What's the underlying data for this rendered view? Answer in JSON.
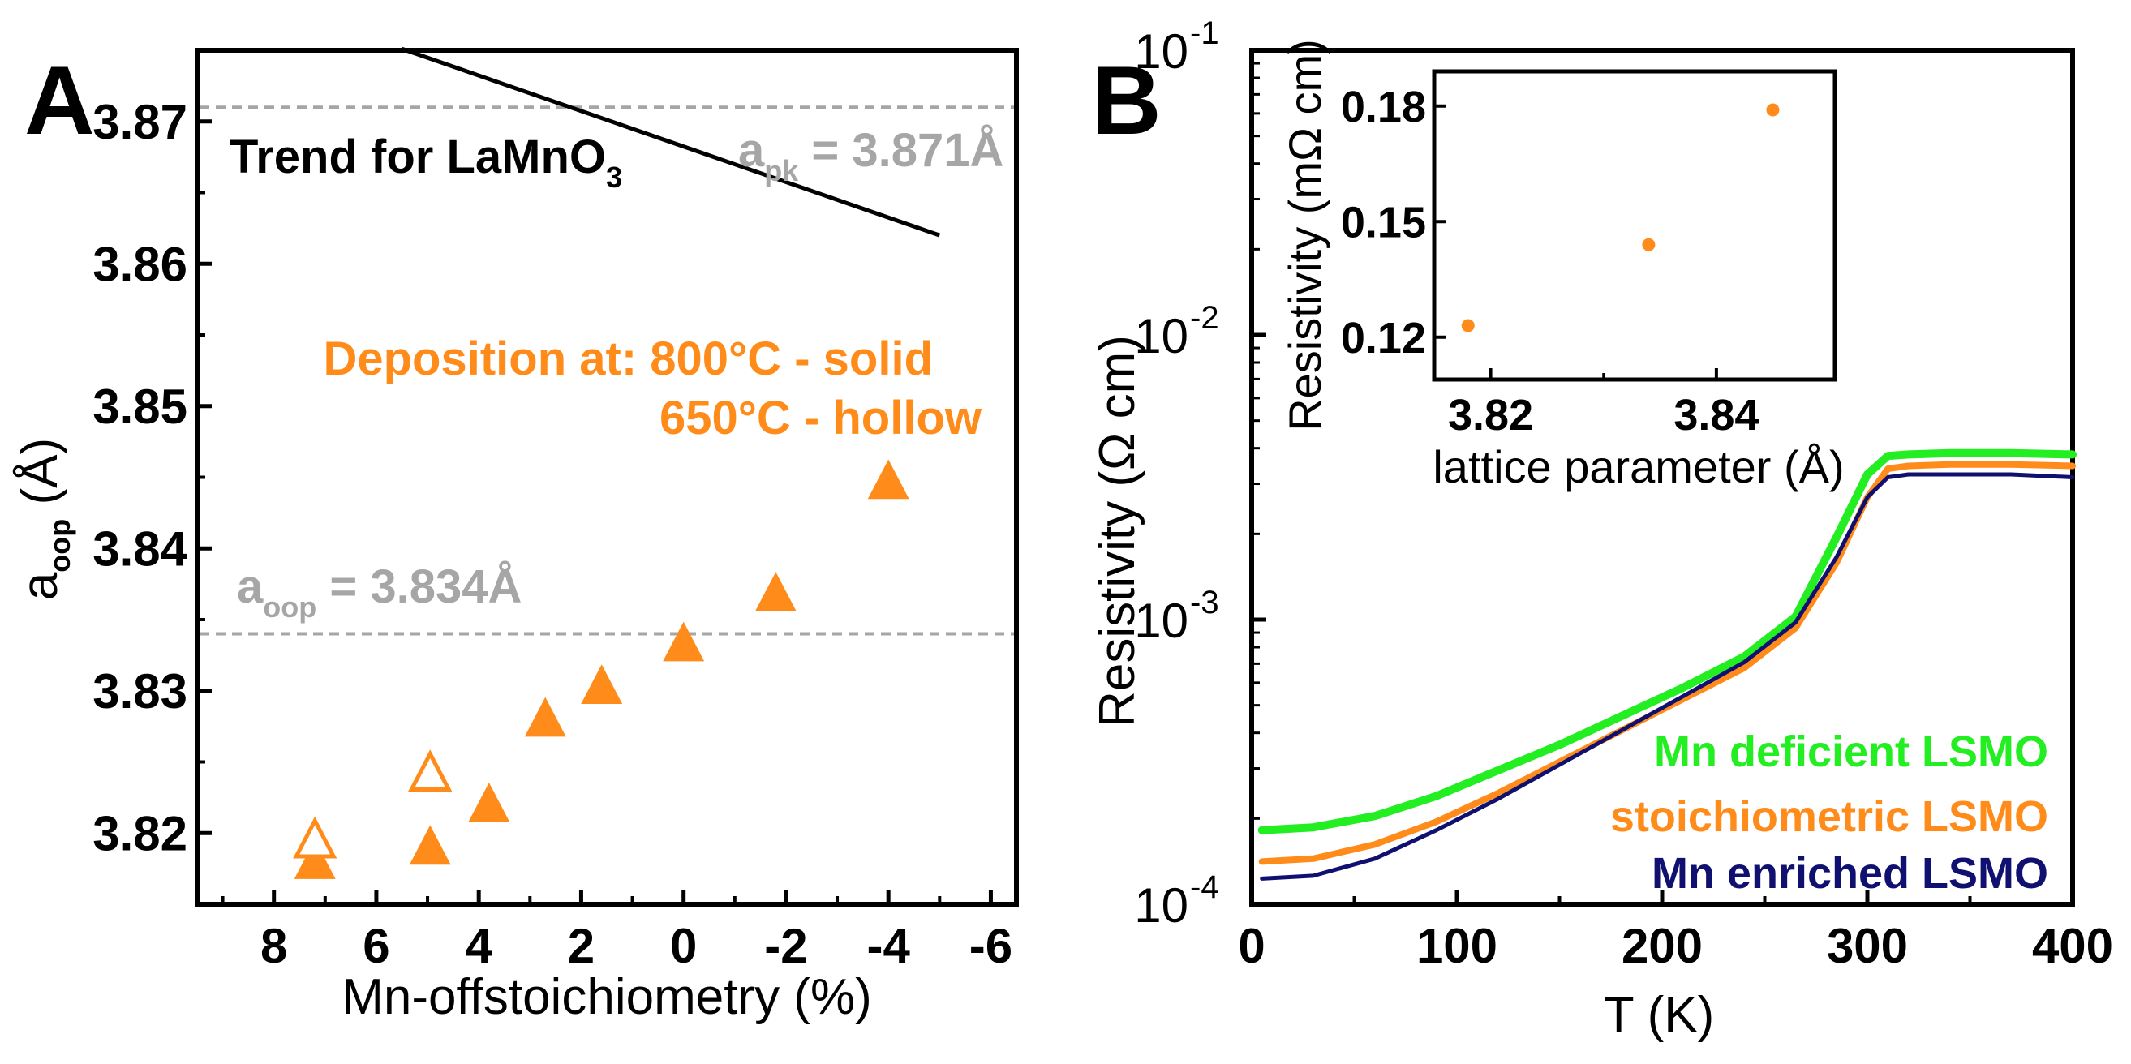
{
  "colors": {
    "orange": "#ff8c1a",
    "gray": "#a6a6a6",
    "green": "#22ee22",
    "navy": "#101070",
    "black": "#000000"
  },
  "chart_data": [
    {
      "panel": "A",
      "type": "scatter",
      "xlabel": "Mn-offstoichiometry (%)",
      "ylabel": "a",
      "ylabel_sub": "oop",
      "ylabel_unit": " (Å)",
      "xlim": [
        9.5,
        -6.5
      ],
      "ylim": [
        3.815,
        3.875
      ],
      "x_ticks": [
        8,
        6,
        4,
        2,
        0,
        -2,
        -4,
        -6
      ],
      "x_tick_labels": [
        "8",
        "6",
        "4",
        "2",
        "0",
        "-2",
        "-4",
        "-6"
      ],
      "y_ticks": [
        3.82,
        3.83,
        3.84,
        3.85,
        3.86,
        3.87
      ],
      "y_tick_labels": [
        "3.82",
        "3.83",
        "3.84",
        "3.85",
        "3.86",
        "3.87"
      ],
      "series": [
        {
          "name": "800°C - solid",
          "marker": "filled-triangle",
          "color": "#ff8c1a",
          "points": [
            [
              7.2,
              3.818
            ],
            [
              4.95,
              3.819
            ],
            [
              3.8,
              3.822
            ],
            [
              2.7,
              3.828
            ],
            [
              1.6,
              3.8303
            ],
            [
              0.0,
              3.8333
            ],
            [
              -1.8,
              3.8368
            ],
            [
              -4.0,
              3.8447
            ]
          ]
        },
        {
          "name": "650°C - hollow",
          "marker": "hollow-triangle",
          "color": "#ff8c1a",
          "points": [
            [
              7.2,
              3.8195
            ],
            [
              4.95,
              3.8242
            ]
          ]
        }
      ],
      "reference_lines": [
        {
          "name": "apk",
          "value": 3.871,
          "label_main": "a",
          "label_sub": "pk",
          "label_rest": " = 3.871Å"
        },
        {
          "name": "aoop",
          "value": 3.834,
          "label_main": "a",
          "label_sub": "oop",
          "label_rest": " = 3.834Å"
        }
      ],
      "trend_line": {
        "name": "Trend for LaMnO3",
        "points": [
          [
            5.5,
            3.8751
          ],
          [
            -5.0,
            3.862
          ]
        ]
      },
      "annotations": {
        "panel_letter": "A",
        "trend_text": "Trend for LaMnO",
        "trend_sub": "3",
        "deposition_line1": "Deposition at: 800°C - solid",
        "deposition_line2": "650°C - hollow"
      }
    },
    {
      "panel": "B",
      "type": "line",
      "xlabel": "T (K)",
      "ylabel": "Resistivity (Ω cm)",
      "xlim": [
        0,
        400
      ],
      "ylim_log10": [
        -4,
        -1
      ],
      "x_ticks": [
        0,
        100,
        200,
        300,
        400
      ],
      "x_tick_labels": [
        "0",
        "100",
        "200",
        "300",
        "400"
      ],
      "y_ticks_log10": [
        -4,
        -3,
        -2,
        -1
      ],
      "y_tick_base": "10",
      "y_tick_exponents": [
        "-4",
        "-3",
        "-2",
        "-1"
      ],
      "series": [
        {
          "name": "Mn deficient LSMO",
          "color": "#22ee22",
          "x": [
            5,
            30,
            60,
            90,
            120,
            150,
            180,
            210,
            240,
            265,
            285,
            300,
            310,
            320,
            340,
            370,
            400
          ],
          "log10_y": [
            -3.74,
            -3.73,
            -3.69,
            -3.62,
            -3.53,
            -3.44,
            -3.34,
            -3.24,
            -3.13,
            -2.99,
            -2.71,
            -2.49,
            -2.425,
            -2.42,
            -2.415,
            -2.415,
            -2.42
          ]
        },
        {
          "name": "stoichiometric LSMO",
          "color": "#ff8c1a",
          "x": [
            5,
            30,
            60,
            90,
            120,
            150,
            180,
            210,
            240,
            265,
            285,
            300,
            310,
            320,
            340,
            370,
            400
          ],
          "log10_y": [
            -3.85,
            -3.84,
            -3.79,
            -3.71,
            -3.61,
            -3.5,
            -3.39,
            -3.28,
            -3.17,
            -3.03,
            -2.8,
            -2.57,
            -2.47,
            -2.46,
            -2.455,
            -2.455,
            -2.46
          ]
        },
        {
          "name": "Mn enriched LSMO",
          "color": "#101070",
          "x": [
            5,
            30,
            60,
            90,
            120,
            150,
            180,
            210,
            240,
            265,
            285,
            300,
            310,
            320,
            340,
            370,
            400
          ],
          "log10_y": [
            -3.91,
            -3.9,
            -3.84,
            -3.74,
            -3.63,
            -3.51,
            -3.39,
            -3.27,
            -3.15,
            -3.01,
            -2.78,
            -2.57,
            -2.5,
            -2.49,
            -2.49,
            -2.49,
            -2.5
          ]
        }
      ],
      "annotations": {
        "panel_letter": "B"
      }
    },
    {
      "panel": "B-inset",
      "type": "scatter",
      "xlabel": "lattice parameter (Å)",
      "ylabel": "Resistivity (mΩ cm)",
      "xlim": [
        3.815,
        3.8505
      ],
      "ylim": [
        0.109,
        0.189
      ],
      "x_ticks": [
        3.82,
        3.84
      ],
      "x_tick_labels": [
        "3.82",
        "3.84"
      ],
      "y_ticks": [
        0.12,
        0.15,
        0.18
      ],
      "y_tick_labels": [
        "0.12",
        "0.15",
        "0.18"
      ],
      "series": [
        {
          "name": "resistivity",
          "color": "#ff8c1a",
          "x": [
            3.818,
            3.834,
            3.845
          ],
          "y": [
            0.123,
            0.144,
            0.179
          ]
        }
      ]
    }
  ],
  "legend": [
    {
      "label": "Mn deficient LSMO",
      "color": "#22ee22"
    },
    {
      "label": "stoichiometric LSMO",
      "color": "#ff8c1a"
    },
    {
      "label": "Mn enriched LSMO",
      "color": "#101070"
    }
  ]
}
